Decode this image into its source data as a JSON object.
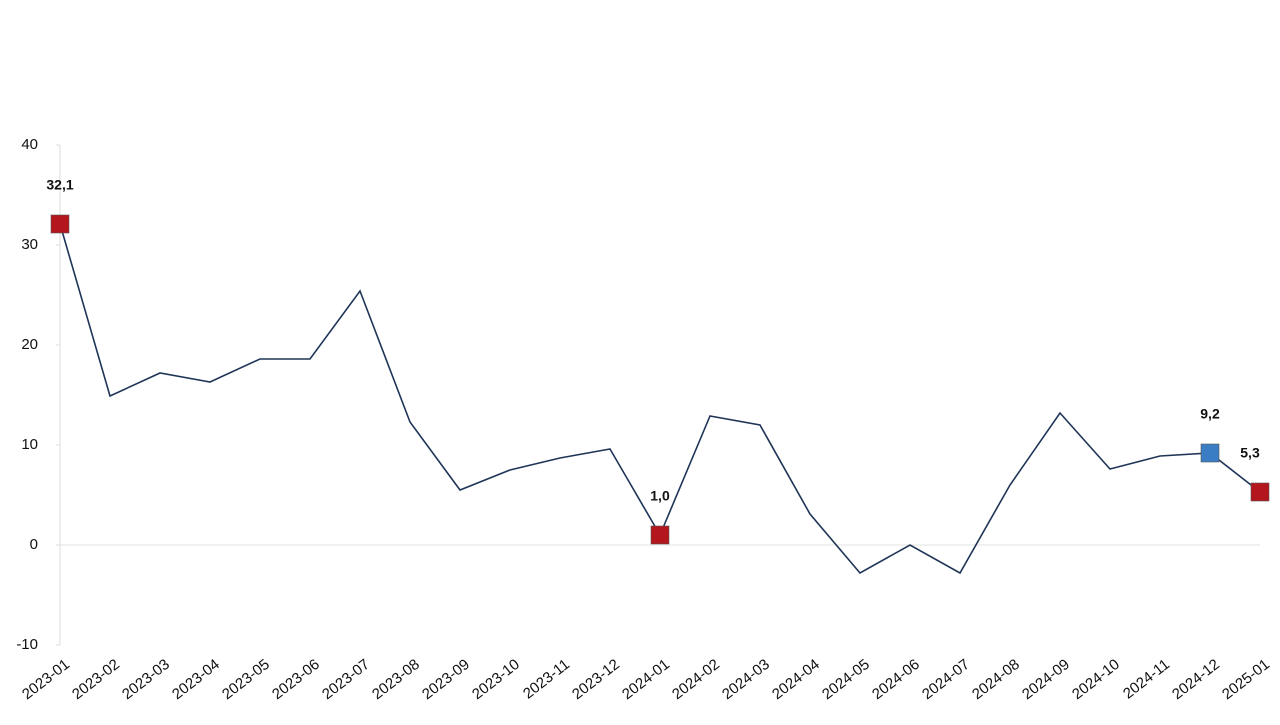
{
  "chart_data": {
    "type": "line",
    "categories": [
      "2023-01",
      "2023-02",
      "2023-03",
      "2023-04",
      "2023-05",
      "2023-06",
      "2023-07",
      "2023-08",
      "2023-09",
      "2023-10",
      "2023-11",
      "2023-12",
      "2024-01",
      "2024-02",
      "2024-03",
      "2024-04",
      "2024-05",
      "2024-06",
      "2024-07",
      "2024-08",
      "2024-09",
      "2024-10",
      "2024-11",
      "2024-12",
      "2025-01"
    ],
    "values": [
      32.1,
      14.9,
      17.2,
      16.3,
      18.6,
      18.6,
      25.4,
      12.3,
      5.5,
      7.5,
      8.7,
      9.6,
      1.0,
      12.9,
      12.0,
      3.1,
      -2.8,
      0.0,
      -2.8,
      6.0,
      13.2,
      7.6,
      8.9,
      9.2,
      5.3
    ],
    "value_labels": [
      "32,1",
      null,
      null,
      null,
      null,
      null,
      null,
      null,
      null,
      null,
      null,
      null,
      "1,0",
      null,
      null,
      null,
      null,
      null,
      null,
      null,
      null,
      null,
      null,
      "9,2",
      "5,3"
    ],
    "marker_colors": [
      "#b3161c",
      null,
      null,
      null,
      null,
      null,
      null,
      null,
      null,
      null,
      null,
      null,
      "#b3161c",
      null,
      null,
      null,
      null,
      null,
      null,
      null,
      null,
      null,
      null,
      "#3b7dc4",
      "#b3161c"
    ],
    "color": "#1f3557",
    "ylim": [
      -10,
      40
    ],
    "yticks": [
      -10,
      0,
      10,
      20,
      30,
      40
    ],
    "zero_line": true
  }
}
